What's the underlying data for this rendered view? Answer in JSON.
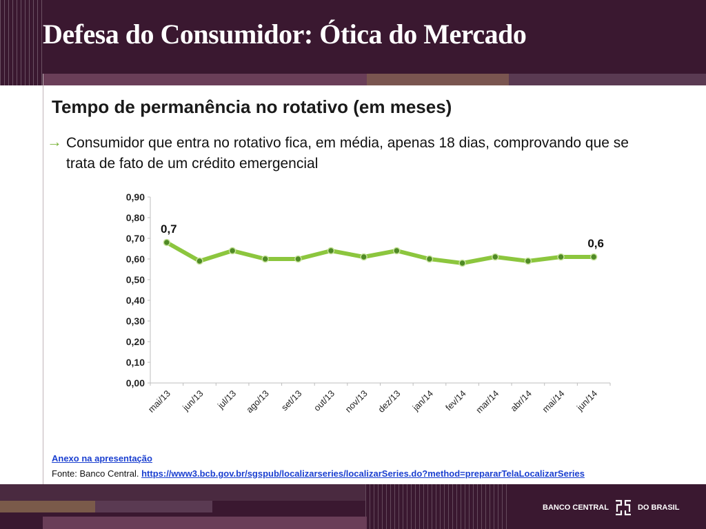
{
  "header": {
    "title": "Defesa do Consumidor: Ótica do Mercado"
  },
  "content": {
    "subtitle": "Tempo de permanência no rotativo (em meses)",
    "bullet": "Consumidor que entra no rotativo fica, em média, apenas 18 dias, comprovando que se trata de fato de um crédito emergencial"
  },
  "chart_data": {
    "type": "line",
    "categories": [
      "mai/13",
      "jun/13",
      "jul/13",
      "ago/13",
      "set/13",
      "out/13",
      "nov/13",
      "dez/13",
      "jan/14",
      "fev/14",
      "mar/14",
      "abr/14",
      "mai/14",
      "jun/14"
    ],
    "values": [
      0.68,
      0.59,
      0.64,
      0.6,
      0.6,
      0.64,
      0.61,
      0.64,
      0.6,
      0.58,
      0.61,
      0.59,
      0.61,
      0.61
    ],
    "ylim": [
      0,
      0.9
    ],
    "yticks": [
      "0,00",
      "0,10",
      "0,20",
      "0,30",
      "0,40",
      "0,50",
      "0,60",
      "0,70",
      "0,80",
      "0,90"
    ],
    "annotations": [
      {
        "index": 0,
        "text": "0,7"
      },
      {
        "index": 13,
        "text": "0,6"
      }
    ],
    "line_color": "#8cc63e",
    "marker_color": "#4f8a25",
    "grid": false
  },
  "footer": {
    "annex_label": "Anexo na apresentação",
    "source_label": "Fonte: Banco Central.",
    "source_url": "https://www3.bcb.gov.br/sgspub/localizarseries/localizarSeries.do?method=prepararTelaLocalizarSeries",
    "logo_left": "BANCO CENTRAL",
    "logo_right": "DO BRASIL"
  }
}
